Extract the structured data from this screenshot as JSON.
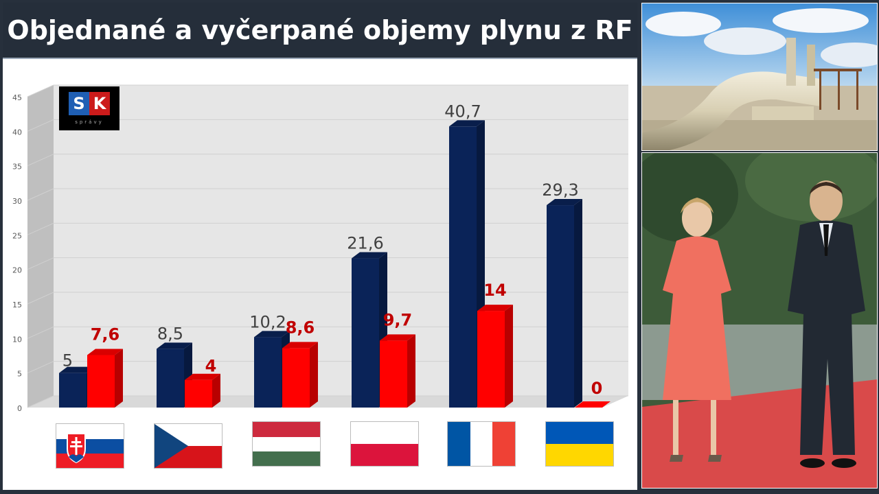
{
  "title": "Objednané a vyčerpané objemy plynu z RF",
  "logo": {
    "letter1": "S",
    "letter2": "K",
    "subtitle": "správy"
  },
  "chart_data": {
    "type": "bar",
    "title": "",
    "xlabel": "",
    "ylabel": "",
    "ylim": [
      0,
      45
    ],
    "yticks": [
      0,
      5,
      10,
      15,
      20,
      25,
      30,
      35,
      40,
      45
    ],
    "grid": true,
    "categories": [
      "SK",
      "CZ",
      "HU",
      "PL",
      "FR",
      "UA"
    ],
    "series": [
      {
        "color": "#0a2358",
        "values": [
          5,
          8.5,
          10.2,
          21.6,
          40.7,
          29.3
        ],
        "labels": [
          "5",
          "8,5",
          "10,2",
          "21,6",
          "40,7",
          "29,3"
        ]
      },
      {
        "color": "#ff0000",
        "values": [
          7.6,
          4,
          8.6,
          9.7,
          14,
          0
        ],
        "labels": [
          "7,6",
          "4",
          "8,6",
          "9,7",
          "14",
          "0"
        ]
      }
    ]
  },
  "flags": [
    "slovakia-flag",
    "czechia-flag",
    "hungary-flag",
    "poland-flag",
    "france-flag",
    "ukraine-flag"
  ],
  "photos": [
    "pipeline-photo",
    "presidents-photo"
  ]
}
